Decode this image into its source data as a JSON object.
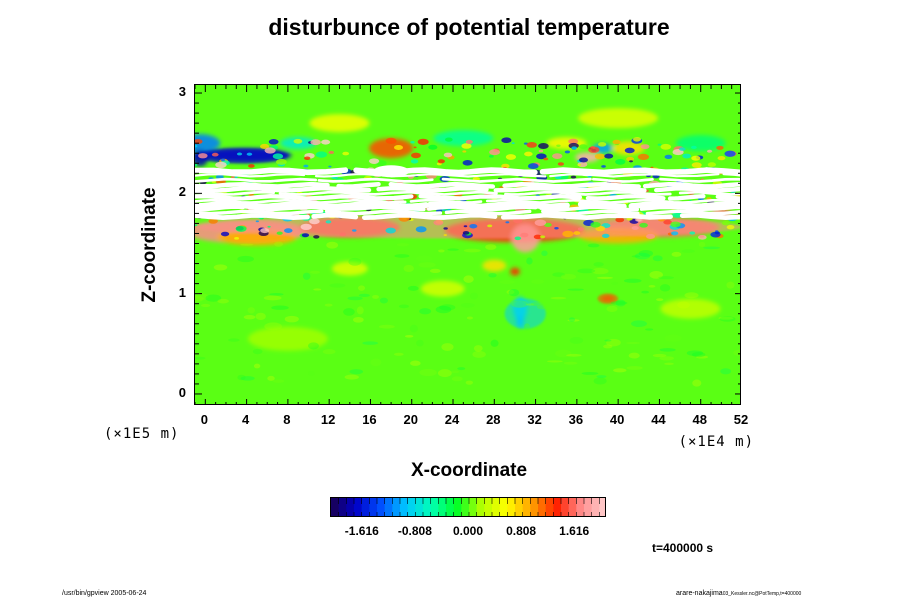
{
  "chart_data": {
    "type": "heatmap",
    "title": "disturbunce of potential temperature",
    "xlabel": "X-coordinate",
    "ylabel": "Z-coordinate",
    "x_unit": "(×1E4 m)",
    "y_unit": "(×1E5 m)",
    "x_ticks": [
      0,
      4,
      8,
      12,
      16,
      20,
      24,
      28,
      32,
      36,
      40,
      44,
      48,
      52
    ],
    "y_ticks": [
      0,
      1,
      2,
      3
    ],
    "xlim": [
      -1,
      52
    ],
    "ylim": [
      -0.12,
      3.08
    ],
    "colorbar": {
      "range": [
        -2.1,
        2.1
      ],
      "ticks": [
        "-1.616",
        "-0.808",
        "0.000",
        "0.808",
        "1.616"
      ],
      "tick_values": [
        -1.616,
        -0.808,
        0.0,
        0.808,
        1.616
      ],
      "colors": [
        "#1a0050",
        "#0000c8",
        "#0050ff",
        "#00c8ff",
        "#00ffb4",
        "#00ff28",
        "#b4ff00",
        "#ffff00",
        "#ffa000",
        "#ff2000",
        "#ff9090",
        "#ffd0d0"
      ]
    },
    "background_value": 0.0,
    "features": [
      {
        "region": "white undefined bands",
        "z_range": [
          1.73,
          2.23
        ]
      },
      {
        "region": "positive (red) layer",
        "x_range": [
          -1,
          52
        ],
        "z_range": [
          1.55,
          1.78
        ],
        "value": 1.7
      },
      {
        "region": "negative (blue) patch",
        "x_range": [
          -1,
          8
        ],
        "z_range": [
          2.3,
          2.45
        ],
        "value": -1.7
      },
      {
        "region": "negative (cyan) patch",
        "x_range": [
          29,
          33
        ],
        "z_range": [
          0.65,
          0.95
        ],
        "value": -0.9
      },
      {
        "region": "positive patch",
        "x_range": [
          38,
          40
        ],
        "z_range": [
          0.9,
          1.0
        ],
        "value": 1.2
      }
    ],
    "annotation": "t=400000 s"
  },
  "footer": {
    "left": "/usr/bin/gpview 2005-06-24",
    "right_main": "arare-nakajima",
    "right_small": "03_Kessler.nc@PotTemp,t=400000"
  }
}
